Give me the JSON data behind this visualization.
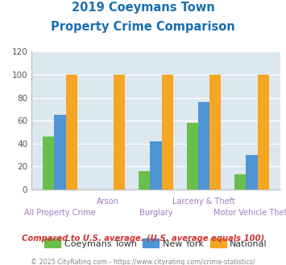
{
  "title_line1": "2019 Coeymans Town",
  "title_line2": "Property Crime Comparison",
  "title_color": "#1a6faf",
  "categories": [
    "All Property Crime",
    "Arson",
    "Burglary",
    "Larceny & Theft",
    "Motor Vehicle Theft"
  ],
  "upper_labels": [
    null,
    "Arson",
    null,
    "Larceny & Theft",
    null
  ],
  "lower_labels": [
    "All Property Crime",
    null,
    "Burglary",
    null,
    "Motor Vehicle Theft"
  ],
  "coeymans": [
    46,
    0,
    16,
    58,
    13
  ],
  "newyork": [
    65,
    0,
    42,
    76,
    30
  ],
  "national": [
    100,
    100,
    100,
    100,
    100
  ],
  "bar_colors": {
    "coeymans": "#6abf4b",
    "newyork": "#4f94d4",
    "national": "#f5a623"
  },
  "ylim": [
    0,
    120
  ],
  "yticks": [
    0,
    20,
    40,
    60,
    80,
    100,
    120
  ],
  "xlabel_color": "#a07cc0",
  "plot_bg": "#dce8ef",
  "note_text": "Compared to U.S. average. (U.S. average equals 100)",
  "note_color": "#cc3333",
  "footer_text": "© 2025 CityRating.com - https://www.cityrating.com/crime-statistics/",
  "footer_color": "#888888",
  "legend_labels": [
    "Coeymans Town",
    "New York",
    "National"
  ]
}
